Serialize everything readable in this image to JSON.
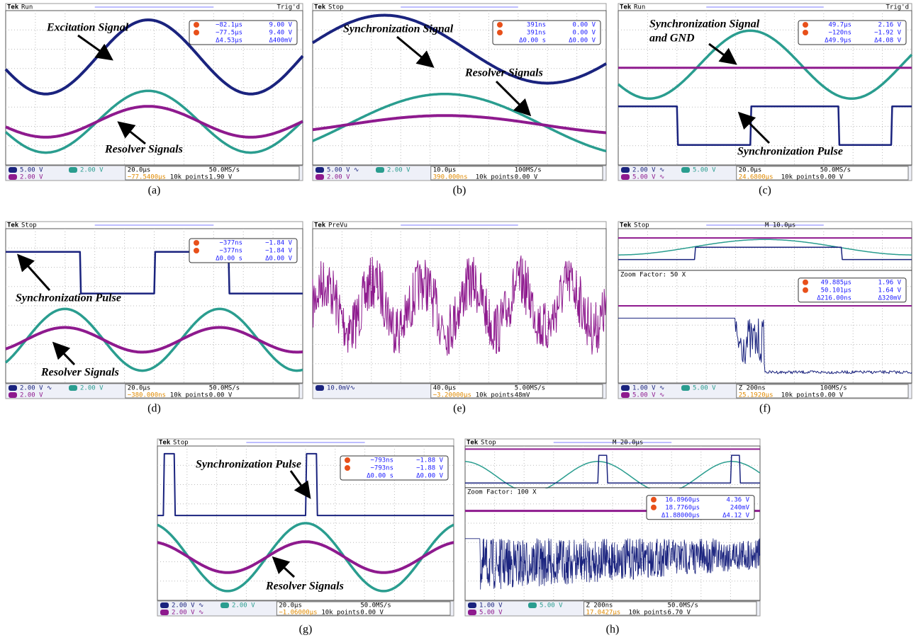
{
  "panels": [
    {
      "brand": "Tek",
      "status": "Run",
      "trig": "Trig'd",
      "readout": [
        [
          "−82.1μs",
          "9.00 V"
        ],
        [
          "−77.5μs",
          "9.40 V"
        ],
        [
          "Δ4.53μs",
          "Δ400mV"
        ]
      ],
      "annotations": [
        "Excitation Signal",
        "Resolver Signals"
      ],
      "bar": {
        "ch": [
          [
            "5.00 V",
            "2.00 V"
          ],
          [
            "2.00 V"
          ]
        ],
        "time": [
          [
            "20.0μs",
            "50.0MS/s"
          ],
          [
            "−77.5400μs",
            "10k points",
            "1.90 V"
          ]
        ]
      },
      "caption": "(a)"
    },
    {
      "brand": "Tek",
      "status": "Stop",
      "readout": [
        [
          "391ns",
          "0.00 V"
        ],
        [
          "391ns",
          "0.00 V"
        ],
        [
          "Δ0.00 s",
          "Δ0.00 V"
        ]
      ],
      "annotations": [
        "Synchronization Signal",
        "Resolver Signals"
      ],
      "bar": {
        "ch": [
          [
            "5.00 V ∿",
            "2.00 V"
          ],
          [
            "2.00 V"
          ]
        ],
        "time": [
          [
            "10.0μs",
            "100MS/s"
          ],
          [
            "390.000ns",
            "10k points",
            "0.00 V"
          ]
        ]
      },
      "caption": "(b)"
    },
    {
      "brand": "Tek",
      "status": "Run",
      "trig": "Trig'd",
      "readout": [
        [
          "49.7μs",
          "2.16 V"
        ],
        [
          "−120ns",
          "−1.92 V"
        ],
        [
          "Δ49.9μs",
          "Δ4.08 V"
        ]
      ],
      "annotations": [
        "Synchronization Signal",
        "and GND",
        "Synchronization Pulse"
      ],
      "bar": {
        "ch": [
          [
            "2.00 V ∿",
            "5.00 V"
          ],
          [
            "5.00 V ∿"
          ]
        ],
        "time": [
          [
            "20.0μs",
            "50.0MS/s"
          ],
          [
            "24.6800μs",
            "10k points",
            "0.00 V"
          ]
        ]
      },
      "caption": "(c)"
    },
    {
      "brand": "Tek",
      "status": "Stop",
      "readout": [
        [
          "−377ns",
          "−1.84 V"
        ],
        [
          "−377ns",
          "−1.84 V"
        ],
        [
          "Δ0.00 s",
          "Δ0.00 V"
        ]
      ],
      "annotations": [
        "Synchronization Pulse",
        "Resolver Signals"
      ],
      "bar": {
        "ch": [
          [
            "2.00 V ∿",
            "2.00 V"
          ],
          [
            "2.00 V"
          ]
        ],
        "time": [
          [
            "20.0μs",
            "50.0MS/s"
          ],
          [
            "−380.000ns",
            "10k points",
            "0.00 V"
          ]
        ]
      },
      "caption": "(d)"
    },
    {
      "brand": "Tek",
      "status": "PreVu",
      "bar": {
        "ch": [
          [
            "10.0mV∿"
          ]
        ],
        "time": [
          [
            "40.0μs",
            "5.00MS/s"
          ],
          [
            "−3.20000μs",
            "10k points",
            "48mV"
          ]
        ]
      },
      "caption": "(e)"
    },
    {
      "brand": "Tek",
      "status": "Stop",
      "top": "M 10.0μs",
      "zoom": "Zoom Factor: 50 X",
      "readout": [
        [
          "49.885μs",
          "1.96 V"
        ],
        [
          "50.101μs",
          "1.64 V"
        ],
        [
          "Δ216.00ns",
          "Δ320mV"
        ]
      ],
      "bar": {
        "ch": [
          [
            "1.00 V ∿",
            "5.00 V"
          ],
          [
            "5.00 V ∿"
          ]
        ],
        "time": [
          [
            "Z 200ns",
            "100MS/s"
          ],
          [
            "25.1920μs",
            "10k points",
            "0.00 V"
          ]
        ]
      },
      "caption": "(f)"
    },
    {
      "brand": "Tek",
      "status": "Stop",
      "readout": [
        [
          "−793ns",
          "−1.88 V"
        ],
        [
          "−793ns",
          "−1.88 V"
        ],
        [
          "Δ0.00 s",
          "Δ0.00 V"
        ]
      ],
      "annotations": [
        "Synchronization Pulse",
        "Resolver Signals"
      ],
      "bar": {
        "ch": [
          [
            "2.00 V ∿",
            "2.00 V"
          ],
          [
            "2.00 V ∿"
          ]
        ],
        "time": [
          [
            "20.0μs",
            "50.0MS/s"
          ],
          [
            "−1.06000μs",
            "10k points",
            "0.00 V"
          ]
        ]
      },
      "caption": "(g)"
    },
    {
      "brand": "Tek",
      "status": "Stop",
      "top": "M 20.0μs",
      "zoom": "Zoom Factor: 100 X",
      "readout": [
        [
          "16.8960μs",
          "4.36 V"
        ],
        [
          "18.7760μs",
          "240mV"
        ],
        [
          "Δ1.88000μs",
          "Δ4.12 V"
        ]
      ],
      "bar": {
        "ch": [
          [
            "1.00 V",
            "5.00 V"
          ],
          [
            "5.00 V"
          ]
        ],
        "time": [
          [
            "Z 200ns",
            "50.0MS/s"
          ],
          [
            "17.0427μs",
            "10k points",
            "6.70 V"
          ]
        ]
      },
      "caption": "(h)"
    }
  ]
}
